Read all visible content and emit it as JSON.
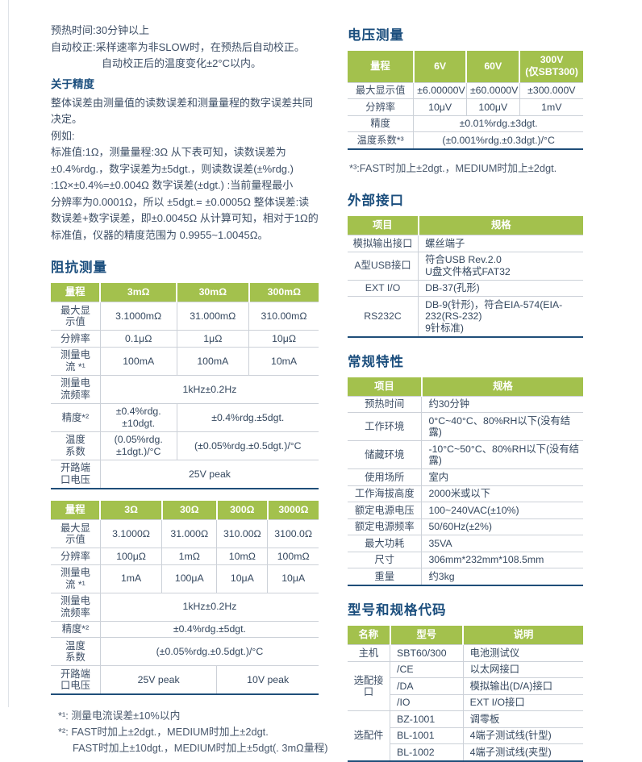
{
  "colors": {
    "accent_green": "#a3c14d",
    "heading_blue": "#1b4e7d",
    "body_text": "#3e4f66",
    "table_bottom_border": "#1f4e79",
    "row_divider": "#ccd1d8"
  },
  "left": {
    "intro_lines": [
      {
        "t": "预热时间:30分钟以上"
      },
      {
        "t": "自动校正:采样速率为非SLOW时，在预热后自动校正。"
      },
      {
        "t": "自动校正后的温度变化±2°C以内。",
        "ind": true
      }
    ],
    "accuracy": {
      "heading": "关于精度",
      "lines": [
        {
          "t": "整体误差由测量值的读数误差和测量量程的数字误差共同"
        },
        {
          "t": "决定。"
        },
        {
          "t": "例如:"
        },
        {
          "t": "标准值:1Ω，测量量程:3Ω 从下表可知，读数误差为"
        },
        {
          "t": "±0.4%rdg.，数字误差为±5dgt.，则读数误差(±%rdg.)"
        },
        {
          "t": ":1Ω×±0.4%=±0.004Ω 数字误差(±dgt.) :当前量程最小"
        },
        {
          "t": "分辨率为0.0001Ω，所以 ±5dgt.= ±0.0005Ω 整体误差:读"
        },
        {
          "t": "数误差+数字误差，即±0.0045Ω 从计算可知，相对于1Ω的"
        },
        {
          "t": "标准值，仪器的精度范围为 0.9955~1.0045Ω。"
        }
      ]
    },
    "impedance": {
      "heading": "阻抗测量",
      "table_low": {
        "widths": [
          "18.5%",
          "28.5%",
          "27%",
          "26%"
        ],
        "header": [
          "量程",
          "3mΩ",
          "30mΩ",
          "300mΩ"
        ],
        "rows": [
          [
            {
              "t": "最大显\n示值",
              "lab": 1
            },
            "3.1000mΩ",
            "31.000mΩ",
            "310.00mΩ"
          ],
          [
            {
              "t": "分辨率",
              "lab": 1
            },
            "0.1μΩ",
            "1μΩ",
            "10μΩ"
          ],
          [
            {
              "t": "测量电\n流 *¹",
              "lab": 1
            },
            "100mA",
            "100mA",
            "10mA"
          ],
          [
            {
              "t": "测量电\n流频率",
              "lab": 1
            },
            {
              "t": "1kHz±0.2Hz",
              "cs": 3
            }
          ],
          [
            {
              "t": "精度*²",
              "lab": 1
            },
            "±0.4%rdg.±10dgt.",
            {
              "t": "±0.4%rdg.±5dgt.",
              "cs": 2
            }
          ],
          [
            {
              "t": "温度\n系数",
              "lab": 1
            },
            "(0.05%rdg.±1dgt.)/°C",
            {
              "t": "(±0.05%rdg.±0.5dgt.)/°C",
              "cs": 2
            }
          ],
          [
            {
              "t": "开路端\n口电压",
              "lab": 1
            },
            {
              "t": "25V peak",
              "cs": 3
            }
          ]
        ]
      },
      "table_high": {
        "widths": [
          "18.5%",
          "23%",
          "20.5%",
          "19%",
          "19%"
        ],
        "header": [
          "量程",
          "3Ω",
          "30Ω",
          "300Ω",
          "3000Ω"
        ],
        "rows": [
          [
            {
              "t": "最大显\n示值",
              "lab": 1
            },
            "3.1000Ω",
            "31.000Ω",
            "310.00Ω",
            "3100.0Ω"
          ],
          [
            {
              "t": "分辨率",
              "lab": 1
            },
            "100μΩ",
            "1mΩ",
            "10mΩ",
            "100mΩ"
          ],
          [
            {
              "t": "测量电\n流 *¹",
              "lab": 1
            },
            "1mA",
            "100μA",
            "10μA",
            "10μA"
          ],
          [
            {
              "t": "测量电\n流频率",
              "lab": 1
            },
            {
              "t": "1kHz±0.2Hz",
              "cs": 4
            }
          ],
          [
            {
              "t": "精度*²",
              "lab": 1
            },
            {
              "t": "±0.4%rdg.±5dgt.",
              "cs": 4
            }
          ],
          [
            {
              "t": "温度\n系数",
              "lab": 1
            },
            {
              "t": "(±0.05%rdg.±0.5dgt.)/°C",
              "cs": 4
            }
          ],
          [
            {
              "t": "开路端\n口电压",
              "lab": 1
            },
            {
              "t": "25V peak",
              "cs": 2
            },
            {
              "t": "10V peak",
              "cs": 2
            }
          ]
        ]
      },
      "footnotes": [
        {
          "t": "*¹: 测量电流误差±10%以内"
        },
        {
          "t": "*²: FAST时加上±2dgt.，MEDIUM时加上±2dgt."
        },
        {
          "t": "FAST时加上±10dgt.，MEDIUM时加上±5dgt(. 3mΩ量程)",
          "ind": true
        }
      ]
    }
  },
  "right": {
    "voltage": {
      "heading": "电压测量",
      "table": {
        "widths": [
          "28%",
          "22.5%",
          "22.5%",
          "27%"
        ],
        "header": [
          "量程",
          "6V",
          "60V",
          "300V\n(仅SBT300)"
        ],
        "rows": [
          [
            {
              "t": "最大显示值",
              "lab": 1
            },
            "±6.00000V",
            "±60.0000V",
            "±300.000V"
          ],
          [
            {
              "t": "分辨率",
              "lab": 1
            },
            "10μV",
            "100μV",
            "1mV"
          ],
          [
            {
              "t": "精度",
              "lab": 1
            },
            {
              "t": "±0.01%rdg.±3dgt.",
              "cs": 3
            }
          ],
          [
            {
              "t": "温度系数*³",
              "lab": 1
            },
            {
              "t": "(±0.001%rdg.±0.3dgt.)/°C",
              "cs": 3
            }
          ]
        ]
      },
      "footnote": "*³:FAST时加上±2dgt.，MEDIUM时加上±2dgt."
    },
    "interfaces": {
      "heading": "外部接口",
      "table": {
        "valAlign": "left",
        "widths": [
          "30%",
          "70%"
        ],
        "header": [
          "项目",
          "规格"
        ],
        "rows": [
          [
            {
              "t": "模拟输出接口",
              "lab": 1
            },
            "螺丝端子"
          ],
          [
            {
              "t": "A型USB接口",
              "lab": 1
            },
            "符合USB Rev.2.0\nU盘文件格式FAT32"
          ],
          [
            {
              "t": "EXT I/O",
              "lab": 1
            },
            "DB-37(孔形)"
          ],
          [
            {
              "t": "RS232C",
              "lab": 1
            },
            "DB-9(针形)，符合EIA-574(EIA-232(RS-232)\n9针标准)"
          ]
        ]
      }
    },
    "general": {
      "heading": "常规特性",
      "table": {
        "valAlign": "left",
        "widths": [
          "31.5%",
          "68.5%"
        ],
        "header": [
          "项目",
          "规格"
        ],
        "rows": [
          [
            {
              "t": "预热时间",
              "lab": 1
            },
            "约30分钟"
          ],
          [
            {
              "t": "工作环境",
              "lab": 1
            },
            "0°C~40°C、80%RH以下(没有结露)"
          ],
          [
            {
              "t": "储藏环境",
              "lab": 1
            },
            "-10°C~50°C、80%RH以下(没有结露)"
          ],
          [
            {
              "t": "使用场所",
              "lab": 1
            },
            "室内"
          ],
          [
            {
              "t": "工作海拔高度",
              "lab": 1
            },
            "2000米或以下"
          ],
          [
            {
              "t": "额定电源电压",
              "lab": 1
            },
            "100~240VAC(±10%)"
          ],
          [
            {
              "t": "额定电源频率",
              "lab": 1
            },
            "50/60Hz(±2%)"
          ],
          [
            {
              "t": "最大功耗",
              "lab": 1
            },
            "35VA"
          ],
          [
            {
              "t": "尺寸",
              "lab": 1
            },
            "306mm*232mm*108.5mm"
          ],
          [
            {
              "t": "重量",
              "lab": 1
            },
            "约3kg"
          ]
        ]
      }
    },
    "models": {
      "heading": "型号和规格代码",
      "table": {
        "valAlign": "left",
        "widths": [
          "18%",
          "31%",
          "51%"
        ],
        "header": [
          "名称",
          "型号",
          "说明"
        ],
        "rows": [
          [
            {
              "t": "主机",
              "lab": 1
            },
            "SBT60/300",
            "电池测试仪"
          ],
          [
            {
              "t": "选配接口",
              "lab": 1,
              "rs": 3
            },
            "/CE",
            "以太网接口"
          ],
          [
            "/DA",
            "模拟输出(D/A)接口"
          ],
          [
            "/IO",
            "EXT I/O接口"
          ],
          [
            {
              "t": "选配件",
              "lab": 1,
              "rs": 3
            },
            "BZ-1001",
            "调零板"
          ],
          [
            "BL-1001",
            "4端子测试线(针型)"
          ],
          [
            "BL-1002",
            "4端子测试线(夹型)"
          ]
        ]
      }
    }
  }
}
